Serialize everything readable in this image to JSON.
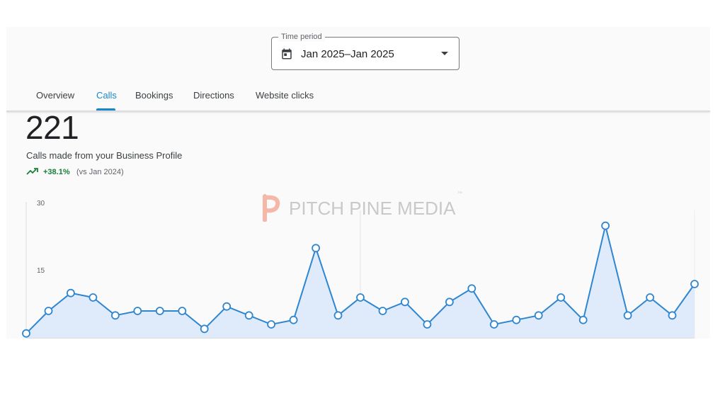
{
  "time_period": {
    "legend": "Time period",
    "value": "Jan 2025–Jan 2025",
    "icon": "calendar-icon"
  },
  "tabs": [
    {
      "label": "Overview",
      "active": false
    },
    {
      "label": "Calls",
      "active": true
    },
    {
      "label": "Bookings",
      "active": false
    },
    {
      "label": "Directions",
      "active": false
    },
    {
      "label": "Website clicks",
      "active": false
    }
  ],
  "metric": {
    "value": "221",
    "description": "Calls made from your Business Profile",
    "trend_percent": "+38.1%",
    "trend_compare": "(vs Jan 2024)",
    "trend_icon": "trending-up-icon"
  },
  "watermark": {
    "text": "PITCH PINE MEDIA",
    "trademark": "™"
  },
  "colors": {
    "accent": "#1a87c9",
    "line": "#2f86d0",
    "area": "#dbe9fb",
    "positive": "#188038"
  },
  "chart_data": {
    "type": "area",
    "x": [
      1,
      2,
      3,
      4,
      5,
      6,
      7,
      8,
      9,
      10,
      11,
      12,
      13,
      14,
      15,
      16,
      17,
      18,
      19,
      20,
      21,
      22,
      23,
      24,
      25,
      26,
      27,
      28,
      29,
      30,
      31
    ],
    "values": [
      1,
      6,
      10,
      9,
      5,
      6,
      6,
      6,
      2,
      7,
      5,
      3,
      4,
      20,
      5,
      9,
      6,
      8,
      3,
      8,
      11,
      3,
      4,
      5,
      9,
      4,
      25,
      5,
      9,
      5,
      12
    ],
    "ylim": [
      0,
      30
    ],
    "yticks": [
      {
        "value": 30,
        "label": "30"
      },
      {
        "value": 15,
        "label": "15"
      }
    ],
    "grid": false
  }
}
